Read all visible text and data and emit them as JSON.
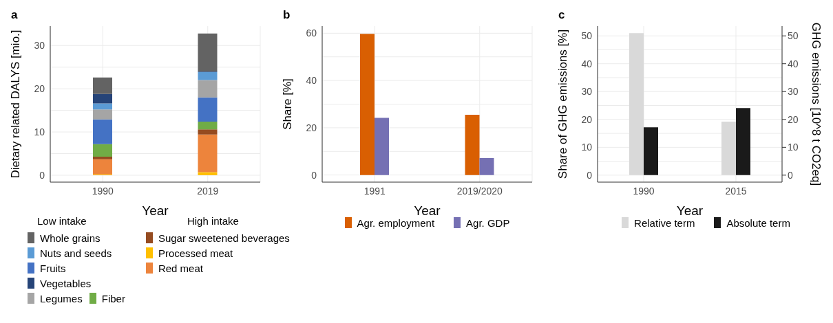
{
  "chart_data": [
    {
      "type": "bar",
      "title": "a",
      "stacked": true,
      "categories": [
        "1990",
        "2019"
      ],
      "xlabel": "Year",
      "ylabel": "Dietary related DALYS [mio.]",
      "ylim": [
        -1.6,
        34.5
      ],
      "yticks": [
        0,
        {
          "value": 5,
          "label": null
        },
        10,
        {
          "value": 15,
          "label": null
        },
        20,
        {
          "value": 25,
          "label": null
        },
        30
      ],
      "grid": true,
      "legend": "bottom",
      "annotations": [
        "Low intake",
        "High intake"
      ],
      "series": [
        {
          "name": "Processed meat",
          "color": "#ffc000",
          "values": [
            0.2,
            0.7
          ]
        },
        {
          "name": "Red meat",
          "color": "#ed843c",
          "values": [
            3.5,
            8.7
          ]
        },
        {
          "name": "Sugar sweetened beverages",
          "color": "#954b20",
          "values": [
            0.6,
            1.2
          ]
        },
        {
          "name": "Fiber",
          "color": "#70ac46",
          "values": [
            2.9,
            1.8
          ]
        },
        {
          "name": "Fruits",
          "color": "#4472c4",
          "values": [
            5.7,
            5.6
          ]
        },
        {
          "name": "Legumes",
          "color": "#a5a5a5",
          "values": [
            2.3,
            4.0
          ]
        },
        {
          "name": "Nuts and seeds",
          "color": "#5b9bd5",
          "values": [
            1.4,
            1.9
          ]
        },
        {
          "name": "Vegetables",
          "color": "#264478",
          "values": [
            2.2,
            0.1
          ]
        },
        {
          "name": "Whole grains",
          "color": "#636363",
          "values": [
            3.8,
            8.8
          ]
        }
      ]
    },
    {
      "type": "bar",
      "title": "b",
      "categories": [
        "1991",
        "2019/2020"
      ],
      "xlabel": "Year",
      "ylabel": "Share [%]",
      "ylim": [
        -3,
        63
      ],
      "yticks": [
        0,
        {
          "value": 10,
          "label": null
        },
        20,
        {
          "value": 30,
          "label": null
        },
        40,
        {
          "value": 50,
          "label": null
        },
        60
      ],
      "grid": true,
      "legend": "bottom",
      "series": [
        {
          "name": "Agr. employment",
          "color": "#d95f02",
          "values": [
            59.7,
            25.5
          ]
        },
        {
          "name": "Agr. GDP",
          "color": "#7570b3",
          "values": [
            24.2,
            7.2
          ]
        }
      ]
    },
    {
      "type": "bar",
      "title": "c",
      "categories": [
        "1990",
        "2015"
      ],
      "xlabel": "Year",
      "ylabel": "Share of GHG emissions [%]",
      "y2label": "GHG emissions [10^8 t CO2eq]",
      "ylim": [
        -2.5,
        53.5
      ],
      "yticks": [
        0,
        {
          "value": 5,
          "label": null
        },
        10,
        {
          "value": 15,
          "label": null
        },
        20,
        {
          "value": 25,
          "label": null
        },
        30,
        {
          "value": 35,
          "label": null
        },
        40,
        {
          "value": 45,
          "label": null
        },
        50
      ],
      "y2lim": [
        -2.5,
        53.5
      ],
      "y2ticks": [
        0,
        10,
        20,
        30,
        40,
        50
      ],
      "grid": true,
      "legend": "bottom",
      "series": [
        {
          "name": "Relative term",
          "color": "#d9d9d9",
          "values": [
            51.0,
            19.2
          ]
        },
        {
          "name": "Absolute term",
          "color": "#1a1a1a",
          "values": [
            17.2,
            24.1
          ],
          "axis": "y2"
        }
      ]
    }
  ]
}
